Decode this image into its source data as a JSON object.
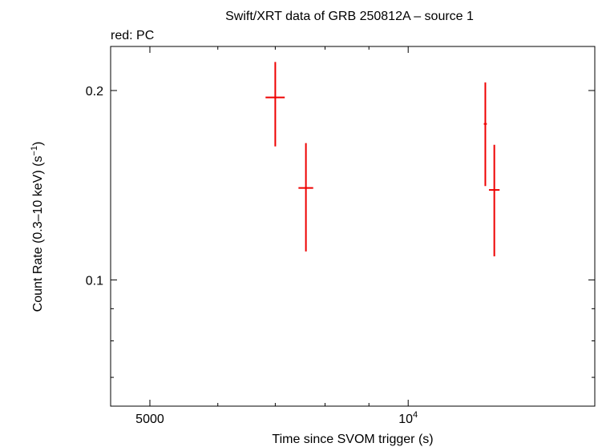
{
  "chart_data": {
    "type": "scatter",
    "title": "Swift/XRT data of GRB 250812A – source 1",
    "subtitle": "red: PC",
    "xlabel": "Time since SVOM trigger (s)",
    "ylabel_main": "Count Rate (0.3–10 keV) (s",
    "ylabel_sup": "−1",
    "ylabel_close": ")",
    "x_scale": "log",
    "y_scale": "log",
    "xlim": [
      4500,
      16500
    ],
    "ylim": [
      0.063,
      0.235
    ],
    "x_ticks": [
      {
        "value": 5000,
        "label": "5000"
      },
      {
        "value": 10000,
        "label": "10",
        "sup": "4"
      }
    ],
    "y_ticks": [
      {
        "value": 0.1,
        "label": "0.1"
      },
      {
        "value": 0.2,
        "label": "0.2"
      }
    ],
    "grid": false,
    "color": "#ee0000",
    "points": [
      {
        "x": 7000,
        "xerr": [
          180,
          180
        ],
        "y": 0.195,
        "yerr": [
          0.032,
          0.027
        ]
      },
      {
        "x": 7600,
        "xerr": [
          150,
          150
        ],
        "y": 0.14,
        "yerr": [
          0.029,
          0.025
        ]
      },
      {
        "x": 12300,
        "xerr": [
          50,
          50
        ],
        "y": 0.177,
        "yerr": [
          0.036,
          0.029
        ]
      },
      {
        "x": 12600,
        "xerr": [
          180,
          180
        ],
        "y": 0.139,
        "yerr": [
          0.03,
          0.025
        ]
      }
    ]
  }
}
